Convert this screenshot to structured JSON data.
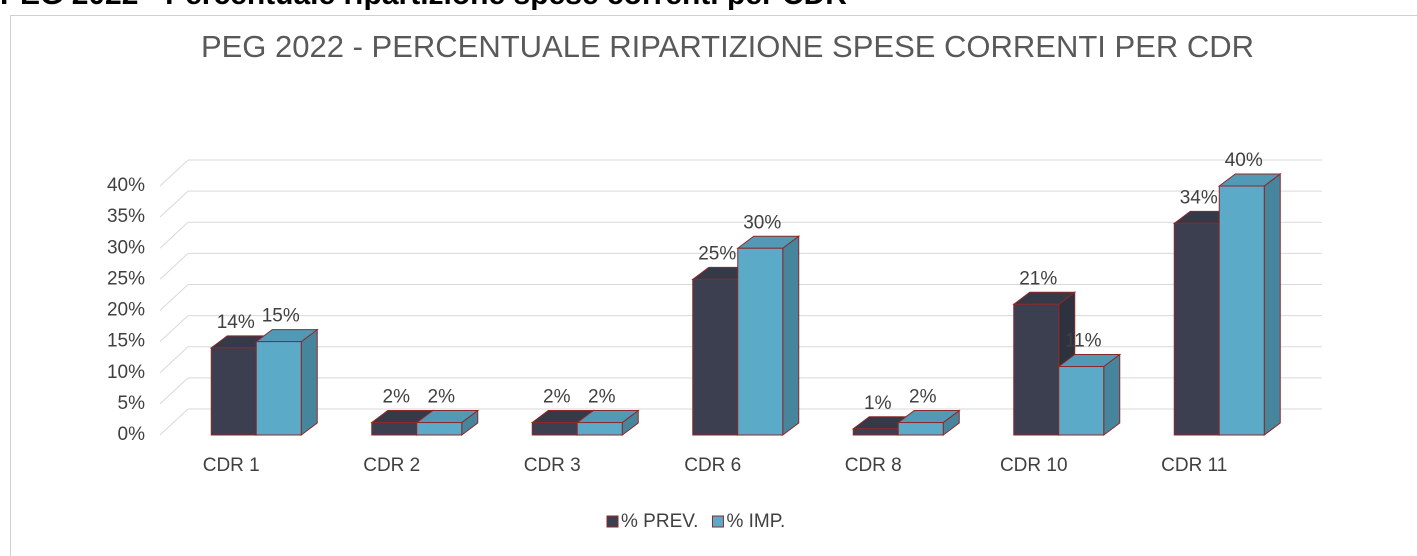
{
  "heading": "PEG 2022 - Percentuale ripartizione spese correnti per CDR",
  "chart_data": {
    "type": "bar3d",
    "title": "PEG 2022 - PERCENTUALE RIPARTIZIONE SPESE CORRENTI PER CDR",
    "categories": [
      "CDR 1",
      "CDR 2",
      "CDR 3",
      "CDR 6",
      "CDR 8",
      "CDR 10",
      "CDR 11"
    ],
    "series": [
      {
        "name": "% PREV.",
        "color": "#3b3f50",
        "values": [
          14,
          2,
          2,
          25,
          1,
          21,
          34
        ],
        "value_labels": [
          "14%",
          "2%",
          "2%",
          "25%",
          "1%",
          "21%",
          "34%"
        ]
      },
      {
        "name": "% IMP.",
        "color": "#5aaac8",
        "values": [
          15,
          2,
          2,
          30,
          2,
          11,
          40
        ],
        "value_labels": [
          "15%",
          "2%",
          "2%",
          "30%",
          "2%",
          "11%",
          "40%"
        ]
      }
    ],
    "ylim": [
      0,
      40
    ],
    "yticks": [
      {
        "value": 0,
        "label": "0%"
      },
      {
        "value": 5,
        "label": "5%"
      },
      {
        "value": 10,
        "label": "10%"
      },
      {
        "value": 15,
        "label": "15%"
      },
      {
        "value": 20,
        "label": "20%"
      },
      {
        "value": 25,
        "label": "25%"
      },
      {
        "value": 30,
        "label": "30%"
      },
      {
        "value": 35,
        "label": "35%"
      },
      {
        "value": 40,
        "label": "40%"
      }
    ],
    "grid": true,
    "legend": "bottom"
  }
}
